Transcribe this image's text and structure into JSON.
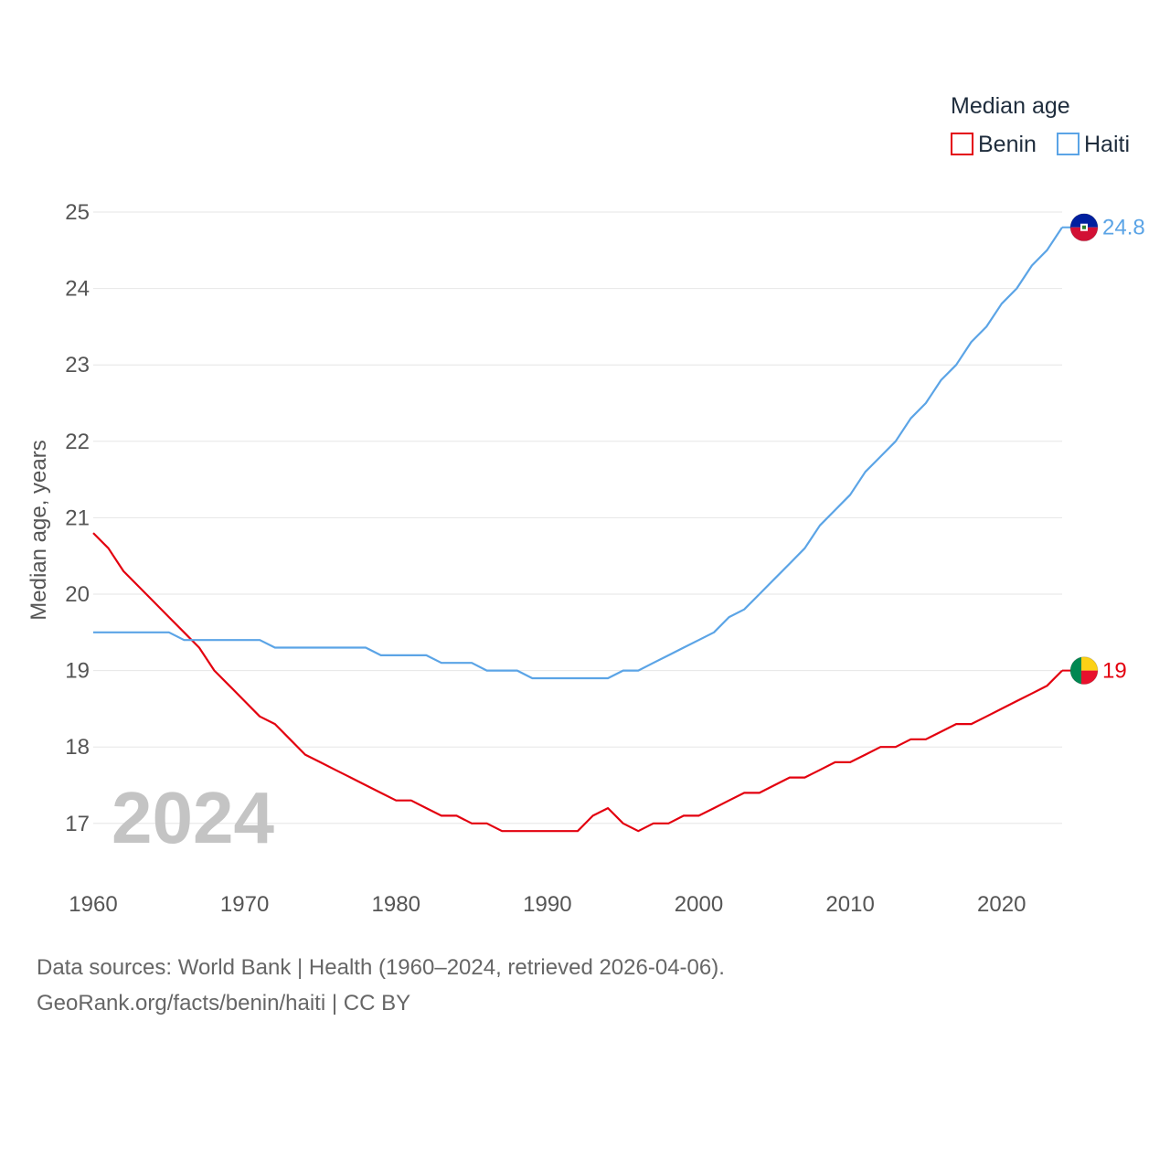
{
  "chart_data": {
    "type": "line",
    "legend_title": "Median age",
    "ylabel": "Median age, years",
    "xlabel": "",
    "xlim": [
      1960,
      2024
    ],
    "ylim": [
      16.4,
      25.3
    ],
    "x_ticks": [
      1960,
      1970,
      1980,
      1990,
      2000,
      2010,
      2020
    ],
    "y_ticks": [
      17,
      18,
      19,
      20,
      21,
      22,
      23,
      24,
      25
    ],
    "year_display": "2024",
    "x": [
      1960,
      1961,
      1962,
      1963,
      1964,
      1965,
      1966,
      1967,
      1968,
      1969,
      1970,
      1971,
      1972,
      1973,
      1974,
      1975,
      1976,
      1977,
      1978,
      1979,
      1980,
      1981,
      1982,
      1983,
      1984,
      1985,
      1986,
      1987,
      1988,
      1989,
      1990,
      1991,
      1992,
      1993,
      1994,
      1995,
      1996,
      1997,
      1998,
      1999,
      2000,
      2001,
      2002,
      2003,
      2004,
      2005,
      2006,
      2007,
      2008,
      2009,
      2010,
      2011,
      2012,
      2013,
      2014,
      2015,
      2016,
      2017,
      2018,
      2019,
      2020,
      2021,
      2022,
      2023,
      2024
    ],
    "series": [
      {
        "name": "Benin",
        "color": "#e3000f",
        "end_label": "19",
        "flag": "benin-flag",
        "values": [
          20.8,
          20.6,
          20.3,
          20.1,
          19.9,
          19.7,
          19.5,
          19.3,
          19.0,
          18.8,
          18.6,
          18.4,
          18.3,
          18.1,
          17.9,
          17.8,
          17.7,
          17.6,
          17.5,
          17.4,
          17.3,
          17.3,
          17.2,
          17.1,
          17.1,
          17.0,
          17.0,
          16.9,
          16.9,
          16.9,
          16.9,
          16.9,
          16.9,
          17.1,
          17.2,
          17.0,
          16.9,
          17.0,
          17.0,
          17.1,
          17.1,
          17.2,
          17.3,
          17.4,
          17.4,
          17.5,
          17.6,
          17.6,
          17.7,
          17.8,
          17.8,
          17.9,
          18.0,
          18.0,
          18.1,
          18.1,
          18.2,
          18.3,
          18.3,
          18.4,
          18.5,
          18.6,
          18.7,
          18.8,
          19.0
        ]
      },
      {
        "name": "Haiti",
        "color": "#5ba4e6",
        "end_label": "24.8",
        "flag": "haiti-flag",
        "values": [
          19.5,
          19.5,
          19.5,
          19.5,
          19.5,
          19.5,
          19.4,
          19.4,
          19.4,
          19.4,
          19.4,
          19.4,
          19.3,
          19.3,
          19.3,
          19.3,
          19.3,
          19.3,
          19.3,
          19.2,
          19.2,
          19.2,
          19.2,
          19.1,
          19.1,
          19.1,
          19.0,
          19.0,
          19.0,
          18.9,
          18.9,
          18.9,
          18.9,
          18.9,
          18.9,
          19.0,
          19.0,
          19.1,
          19.2,
          19.3,
          19.4,
          19.5,
          19.7,
          19.8,
          20.0,
          20.2,
          20.4,
          20.6,
          20.9,
          21.1,
          21.3,
          21.6,
          21.8,
          22.0,
          22.3,
          22.5,
          22.8,
          23.0,
          23.3,
          23.5,
          23.8,
          24.0,
          24.3,
          24.5,
          24.8
        ]
      }
    ]
  },
  "footer": {
    "sources": "Data sources: World Bank | Health (1960–2024, retrieved 2026-04-06).",
    "credit": "GeoRank.org/facts/benin/haiti | CC BY"
  }
}
